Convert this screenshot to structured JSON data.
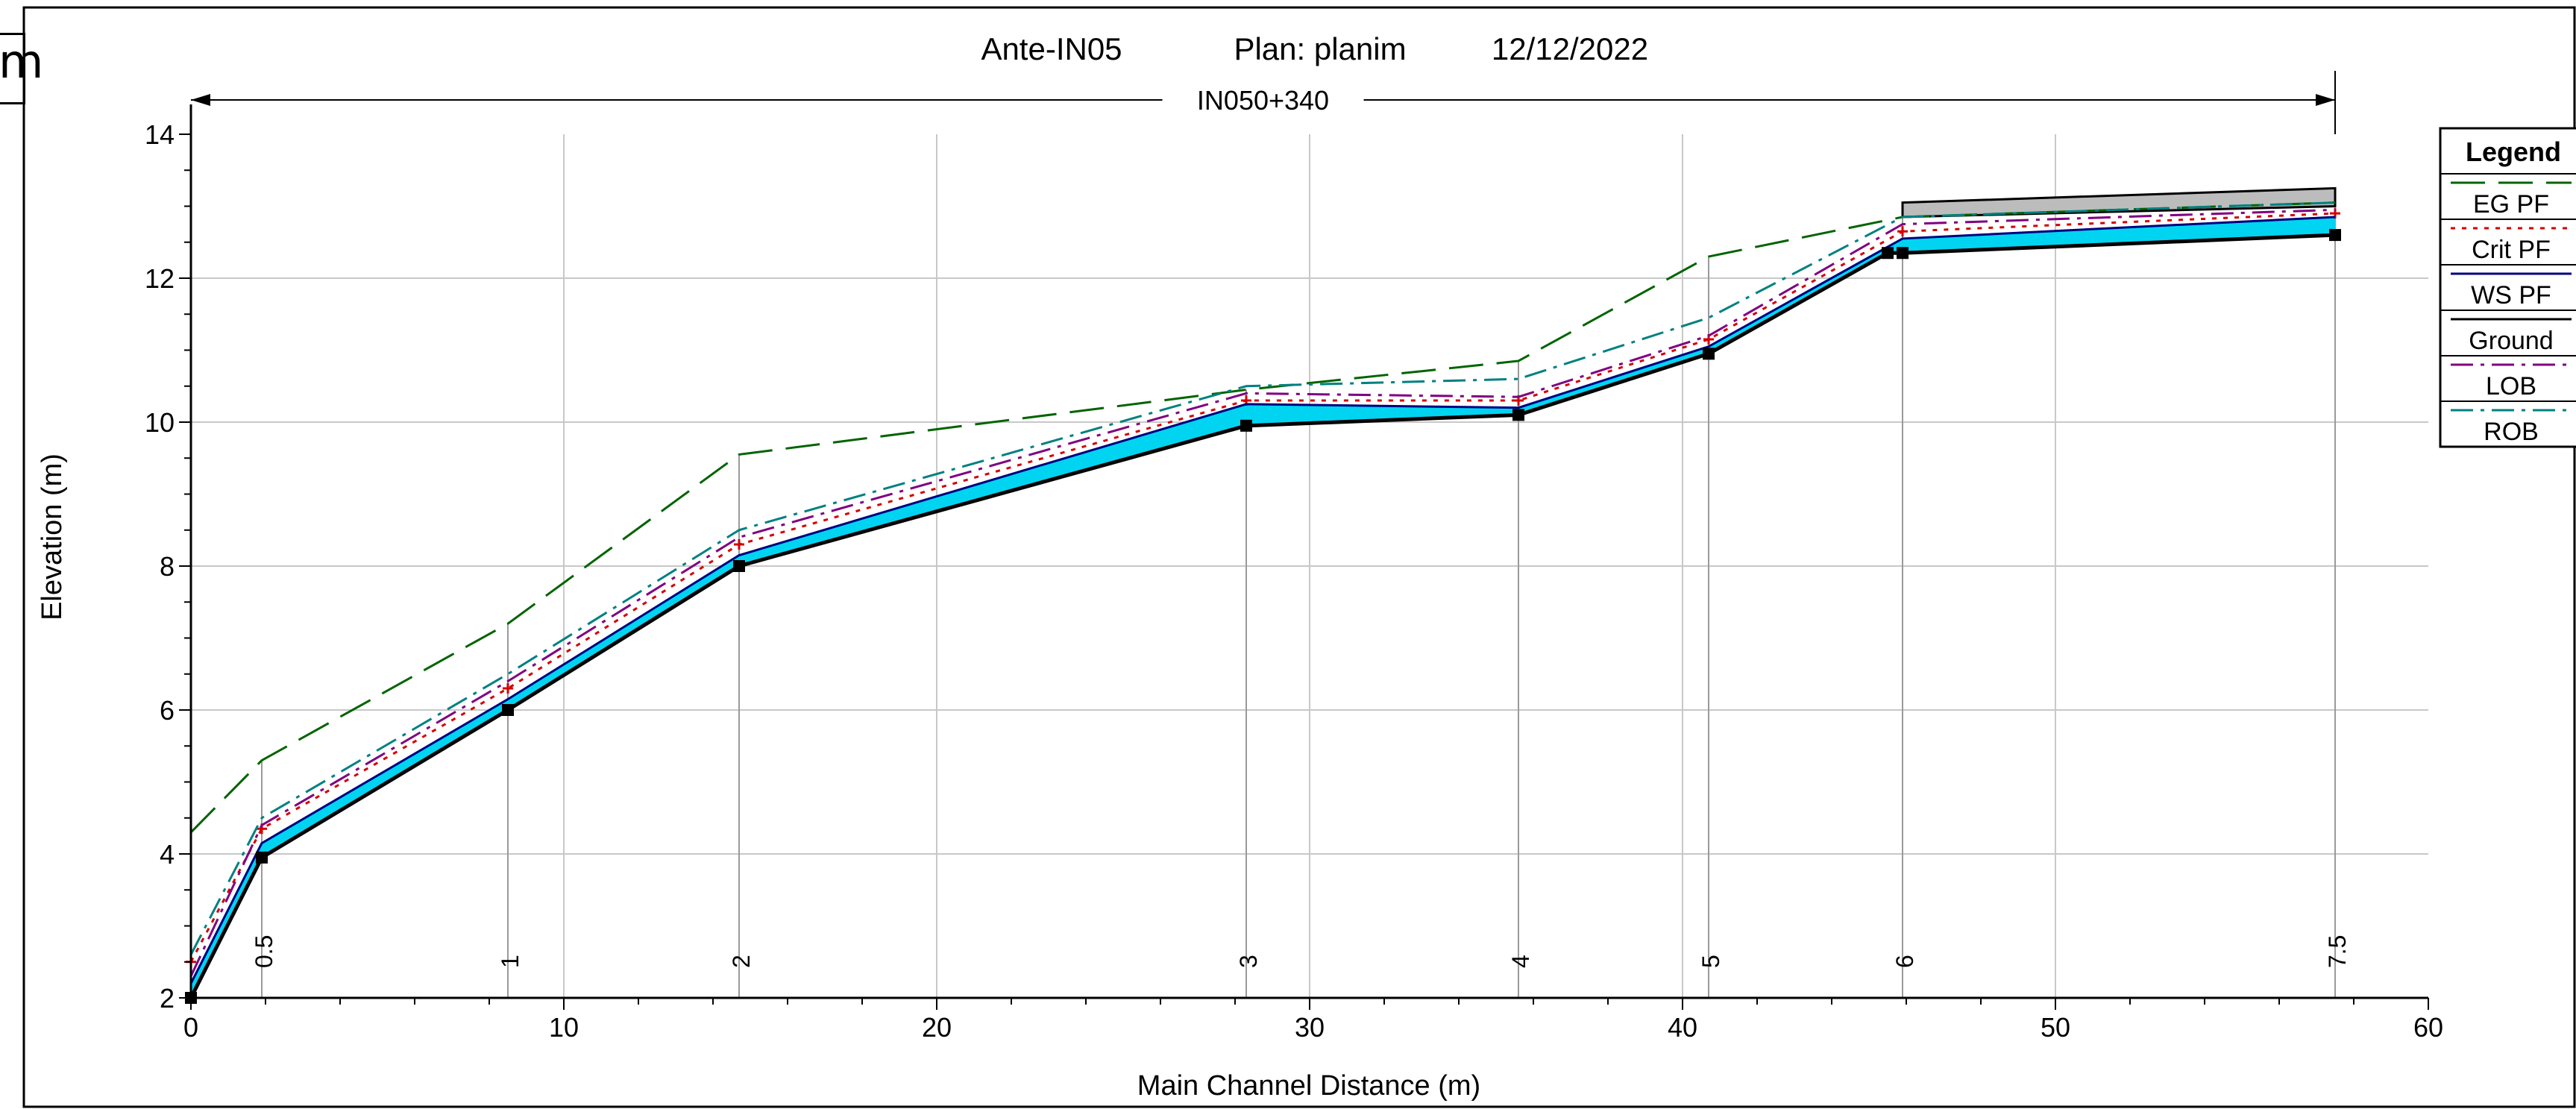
{
  "window": {
    "clip_label": "m"
  },
  "chart_data": {
    "type": "line",
    "title_parts": {
      "name": "Ante-IN05",
      "plan": "Plan: planim",
      "date": "12/12/2022"
    },
    "reach_label": "IN050+340",
    "reach_span": [
      0,
      57.5
    ],
    "xlabel": "Main Channel Distance (m)",
    "ylabel": "Elevation (m)",
    "xlim": [
      0,
      60
    ],
    "ylim": [
      2,
      14
    ],
    "x_ticks": [
      0,
      10,
      20,
      30,
      40,
      50,
      60
    ],
    "x_tick_labels": [
      "0",
      "10",
      "20",
      "30",
      "40",
      "50",
      "60"
    ],
    "y_ticks": [
      2,
      4,
      6,
      8,
      10,
      12,
      14
    ],
    "y_tick_labels": [
      "2",
      "4",
      "6",
      "8",
      "10",
      "12",
      "14"
    ],
    "grid": true,
    "legend_position": "right",
    "legend_title": "Legend",
    "stations": [
      {
        "label": "0.5",
        "x": 1.9
      },
      {
        "label": "1",
        "x": 8.5
      },
      {
        "label": "2",
        "x": 14.7
      },
      {
        "label": "3",
        "x": 28.3
      },
      {
        "label": "4",
        "x": 35.6
      },
      {
        "label": "5",
        "x": 40.7
      },
      {
        "label": "6",
        "x": 45.9
      },
      {
        "label": "7.5",
        "x": 57.5
      }
    ],
    "series": [
      {
        "name": "EG PF",
        "color": "#006400",
        "dash": "long",
        "x": [
          0,
          1.9,
          8.5,
          14.7,
          28.3,
          35.6,
          40.7,
          45.9,
          57.5
        ],
        "y": [
          4.3,
          5.3,
          7.2,
          9.55,
          10.45,
          10.85,
          12.3,
          12.85,
          13.05
        ]
      },
      {
        "name": "Crit PF",
        "color": "#d40000",
        "dash": "dot",
        "x": [
          0,
          1.9,
          8.5,
          14.7,
          28.3,
          35.6,
          40.7,
          45.9,
          57.5
        ],
        "y": [
          2.5,
          4.35,
          6.3,
          8.3,
          10.3,
          10.3,
          11.15,
          12.65,
          12.9
        ]
      },
      {
        "name": "WS PF",
        "color": "#000080",
        "dash": "solid",
        "x": [
          0,
          1.9,
          8.5,
          14.7,
          28.3,
          35.6,
          40.7,
          45.9,
          57.5
        ],
        "y": [
          2.2,
          4.15,
          6.15,
          8.15,
          10.25,
          10.2,
          11.05,
          12.55,
          12.85
        ]
      },
      {
        "name": "Ground",
        "color": "#000000",
        "dash": "solid",
        "x": [
          0,
          1.9,
          8.5,
          14.7,
          28.3,
          35.6,
          40.7,
          45.5,
          45.9,
          57.5
        ],
        "y": [
          2.0,
          3.95,
          6.0,
          8.0,
          9.95,
          10.1,
          10.95,
          12.35,
          12.35,
          12.6
        ]
      },
      {
        "name": "LOB",
        "color": "#800080",
        "dash": "dashdot",
        "x": [
          0,
          1.9,
          8.5,
          14.7,
          28.3,
          35.6,
          40.7,
          45.9,
          57.5
        ],
        "y": [
          2.3,
          4.4,
          6.4,
          8.4,
          10.4,
          10.35,
          11.2,
          12.75,
          12.95
        ]
      },
      {
        "name": "ROB",
        "color": "#008080",
        "dash": "dashdot",
        "x": [
          0,
          1.9,
          8.5,
          14.7,
          28.3,
          35.6,
          40.7,
          45.9,
          57.5
        ],
        "y": [
          2.6,
          4.5,
          6.5,
          8.5,
          10.5,
          10.6,
          11.45,
          12.85,
          13.05
        ]
      }
    ],
    "water_fill_color": "#00d4f0",
    "bridge_deck": {
      "x_start": 45.9,
      "x_end": 57.5,
      "low": [
        12.85,
        13.0
      ],
      "high": [
        13.05,
        13.25
      ],
      "color": "#bcbcbc"
    }
  }
}
